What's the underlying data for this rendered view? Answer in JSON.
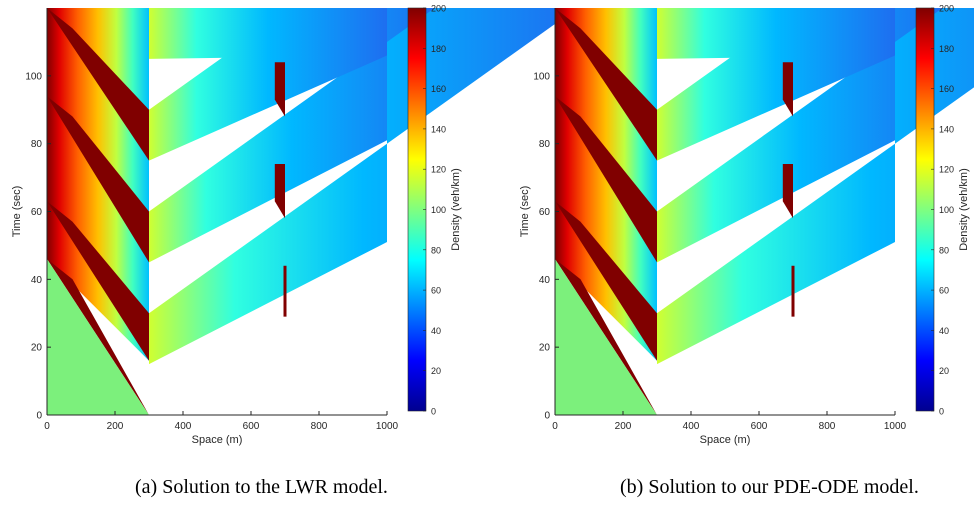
{
  "chart_data": [
    {
      "type": "heatmap",
      "panel": "a",
      "caption": "(a) Solution to the LWR model.",
      "xlabel": "Space (m)",
      "ylabel": "Time (sec)",
      "xlim": [
        0,
        1000
      ],
      "ylim": [
        0,
        120
      ],
      "xticks": [
        0,
        200,
        400,
        600,
        800,
        1000
      ],
      "yticks": [
        0,
        20,
        40,
        60,
        80,
        100
      ],
      "colorbar": {
        "label": "Density (veh/km)",
        "range": [
          0,
          200
        ],
        "ticks": [
          0,
          20,
          40,
          60,
          80,
          100,
          120,
          140,
          160,
          180,
          200
        ],
        "colormap": "jet"
      },
      "signal_position_m": 300,
      "bottleneck_position_m": 700
    },
    {
      "type": "heatmap",
      "panel": "b",
      "caption": "(b) Solution to our PDE-ODE model.",
      "xlabel": "Space (m)",
      "ylabel": "Time (sec)",
      "xlim": [
        0,
        1000
      ],
      "ylim": [
        0,
        120
      ],
      "xticks": [
        0,
        200,
        400,
        600,
        800,
        1000
      ],
      "yticks": [
        0,
        20,
        40,
        60,
        80,
        100
      ],
      "colorbar": {
        "label": "Density (veh/km)",
        "range": [
          0,
          200
        ],
        "ticks": [
          0,
          20,
          40,
          60,
          80,
          100,
          120,
          140,
          160,
          180,
          200
        ],
        "colormap": "jet"
      },
      "signal_position_m": 300,
      "bottleneck_position_m": 700
    }
  ],
  "colors": {
    "background": "#ffffff",
    "jam": "#800000",
    "initial_region": "#7cf07c",
    "free_flow": "#1e6ef0"
  }
}
